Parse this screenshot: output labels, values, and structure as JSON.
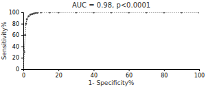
{
  "chart_data": {
    "type": "line",
    "title": "AUC = 0.98, p<0.0001",
    "xlabel": "1- Specificity%",
    "ylabel": "Sensitivity%",
    "x": [
      0,
      0.5,
      1,
      1.5,
      2,
      3,
      4,
      5,
      6,
      7,
      8,
      10,
      15,
      20,
      30,
      40,
      50,
      60,
      70,
      80,
      90,
      100
    ],
    "series": [
      {
        "color": "#444444",
        "marker": "dot",
        "line_style": "dotted",
        "values": [
          0,
          30,
          60,
          80,
          88,
          93,
          96,
          97,
          98,
          99,
          99.5,
          100,
          100,
          100,
          100,
          100,
          100,
          100,
          100,
          100,
          100,
          100
        ]
      }
    ],
    "xlim": [
      0,
      100
    ],
    "ylim": [
      0,
      100
    ],
    "xticks": [
      0,
      20,
      40,
      60,
      80,
      100
    ],
    "yticks": [
      0,
      20,
      40,
      60,
      80,
      100
    ],
    "grid": false
  }
}
